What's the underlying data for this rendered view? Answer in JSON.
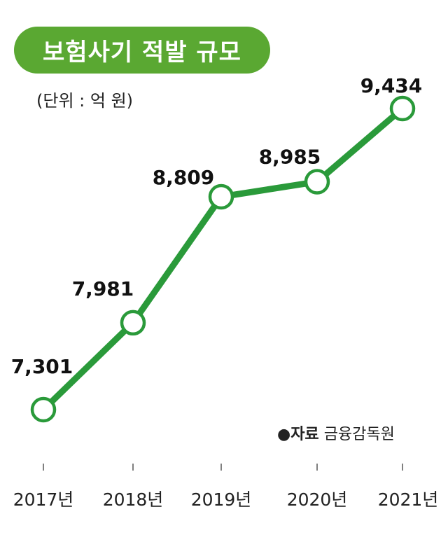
{
  "chart_data": {
    "type": "line",
    "title": "보험사기 적발 규모",
    "unit_label": "(단위 : 억 원)",
    "categories": [
      "2017년",
      "2018년",
      "2019년",
      "2020년",
      "2021년"
    ],
    "values": [
      7301,
      7981,
      8809,
      8985,
      9434
    ],
    "value_labels": [
      "7,301",
      "7,981",
      "8,809",
      "8,985",
      "9,434"
    ],
    "ylim": [
      6800,
      9800
    ],
    "grid": false,
    "source_label": "●자료",
    "source": "금융감독원",
    "colors": {
      "line": "#2a9a3a",
      "title_bg": "#5aa832"
    }
  }
}
